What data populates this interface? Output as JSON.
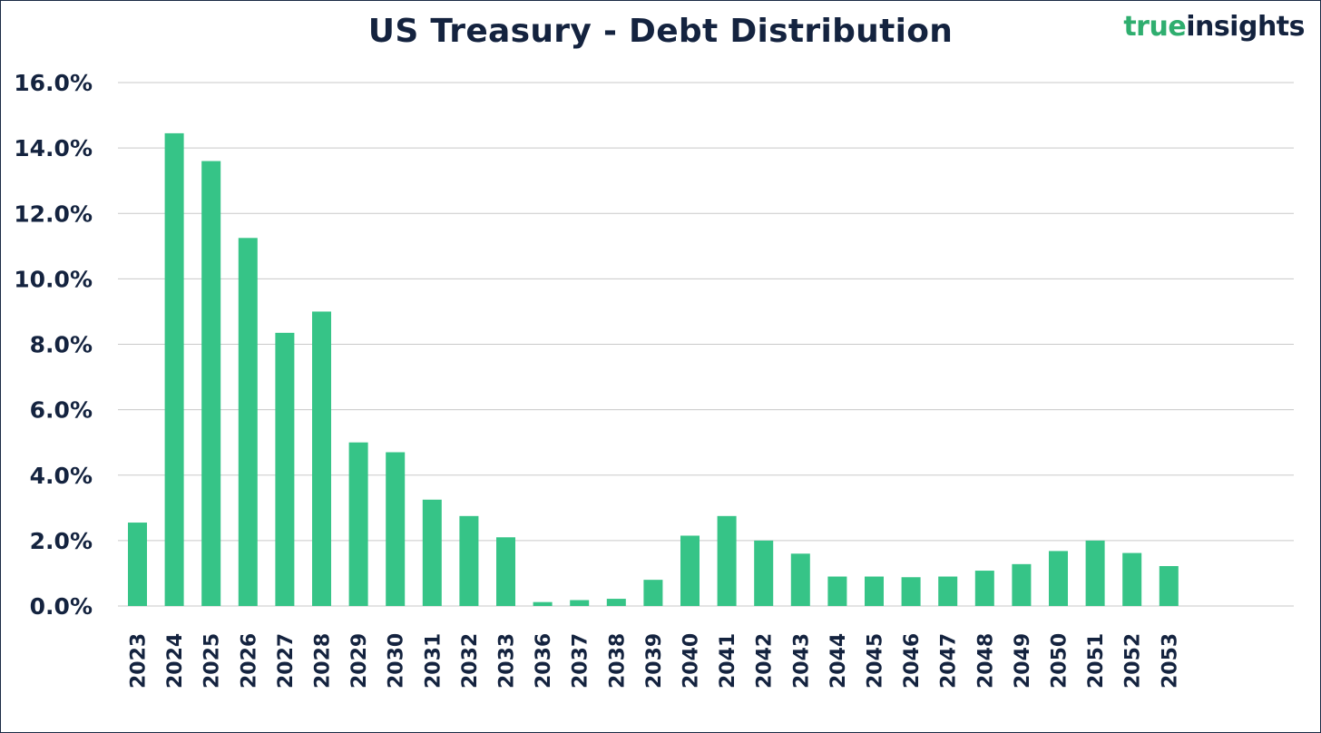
{
  "logo": {
    "part1": "true",
    "part2": "insights"
  },
  "colors": {
    "bar": "#36c487",
    "text": "#14233f",
    "grid": "#c9c9c9",
    "logo_green": "#2fae6f"
  },
  "chart_data": {
    "type": "bar",
    "title": "US Treasury - Debt Distribution",
    "xlabel": "",
    "ylabel": "",
    "ylim": [
      0,
      16
    ],
    "yticks": [
      {
        "value": 0,
        "label": "0.0%"
      },
      {
        "value": 2,
        "label": "2.0%"
      },
      {
        "value": 4,
        "label": "4.0%"
      },
      {
        "value": 6,
        "label": "6.0%"
      },
      {
        "value": 8,
        "label": "8.0%"
      },
      {
        "value": 10,
        "label": "10.0%"
      },
      {
        "value": 12,
        "label": "12.0%"
      },
      {
        "value": 14,
        "label": "14.0%"
      },
      {
        "value": 16,
        "label": "16.0%"
      }
    ],
    "grid": true,
    "categories": [
      "2023",
      "2024",
      "2025",
      "2026",
      "2027",
      "2028",
      "2029",
      "2030",
      "2031",
      "2032",
      "2033",
      "2036",
      "2037",
      "2038",
      "2039",
      "2040",
      "2041",
      "2042",
      "2043",
      "2044",
      "2045",
      "2046",
      "2047",
      "2048",
      "2049",
      "2050",
      "2051",
      "2052",
      "2053"
    ],
    "values": [
      2.55,
      14.45,
      13.6,
      11.25,
      8.35,
      9.0,
      5.0,
      4.7,
      3.25,
      2.75,
      2.1,
      0.12,
      0.18,
      0.22,
      0.8,
      2.15,
      2.75,
      2.0,
      1.6,
      0.9,
      0.9,
      0.88,
      0.9,
      1.08,
      1.28,
      1.68,
      2.0,
      1.62,
      1.22
    ]
  }
}
